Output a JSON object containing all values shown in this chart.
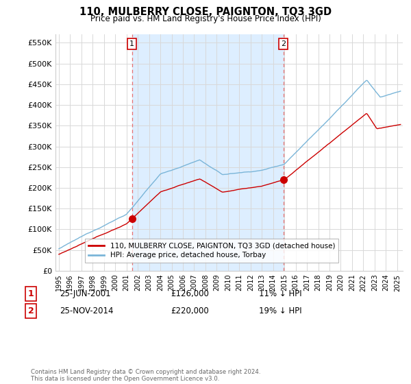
{
  "title": "110, MULBERRY CLOSE, PAIGNTON, TQ3 3GD",
  "subtitle": "Price paid vs. HM Land Registry's House Price Index (HPI)",
  "ylabel_ticks": [
    "£0",
    "£50K",
    "£100K",
    "£150K",
    "£200K",
    "£250K",
    "£300K",
    "£350K",
    "£400K",
    "£450K",
    "£500K",
    "£550K"
  ],
  "ytick_vals": [
    0,
    50000,
    100000,
    150000,
    200000,
    250000,
    300000,
    350000,
    400000,
    450000,
    500000,
    550000
  ],
  "ylim": [
    0,
    570000
  ],
  "xlim_start": 1994.7,
  "xlim_end": 2025.5,
  "legend_line1": "110, MULBERRY CLOSE, PAIGNTON, TQ3 3GD (detached house)",
  "legend_line2": "HPI: Average price, detached house, Torbay",
  "legend_color1": "#cc0000",
  "legend_color2": "#7ab5d8",
  "marker1_label": "1",
  "marker1_x": 2001.48,
  "marker1_y": 126000,
  "marker1_date": "25-JUN-2001",
  "marker1_price": "£126,000",
  "marker1_hpi": "11% ↓ HPI",
  "marker2_label": "2",
  "marker2_x": 2014.9,
  "marker2_y": 220000,
  "marker2_date": "25-NOV-2014",
  "marker2_price": "£220,000",
  "marker2_hpi": "19% ↓ HPI",
  "vline_color": "#e87070",
  "background_color": "#ffffff",
  "shade_color": "#ddeeff",
  "grid_color": "#d8d8d8",
  "footer_text": "Contains HM Land Registry data © Crown copyright and database right 2024.\nThis data is licensed under the Open Government Licence v3.0.",
  "red_line_color": "#cc0000",
  "blue_line_color": "#7ab5d8"
}
